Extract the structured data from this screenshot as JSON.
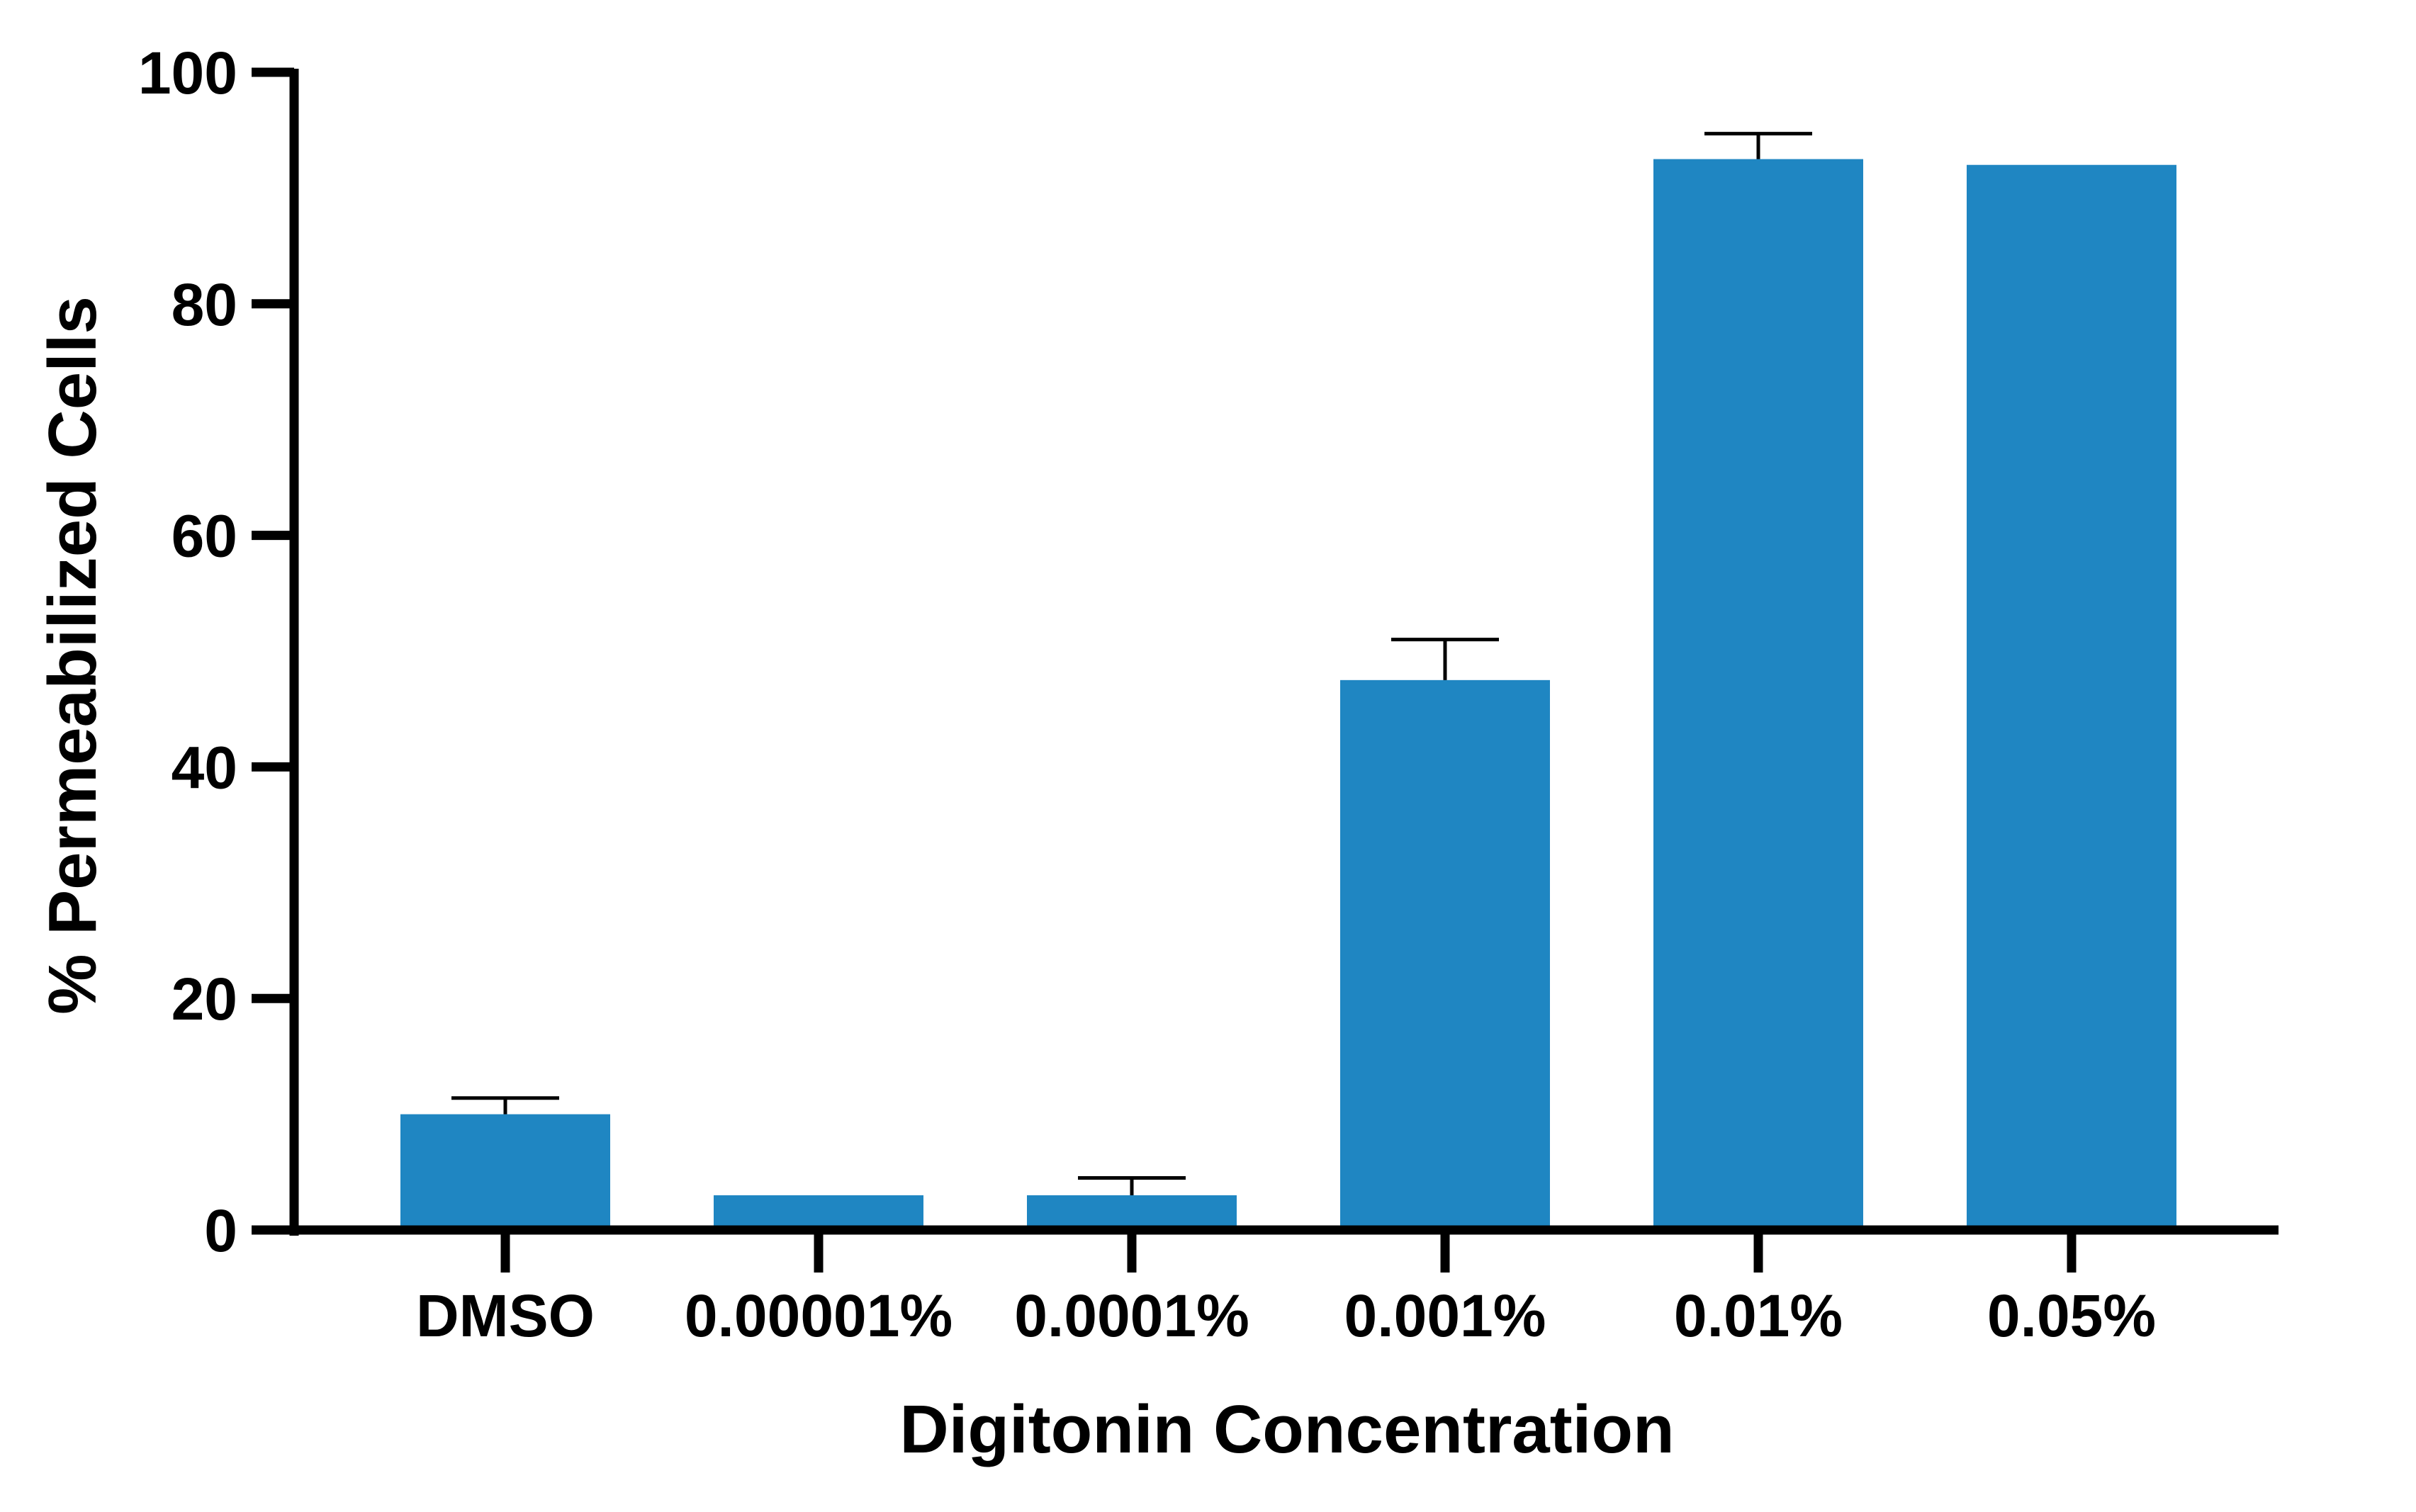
{
  "chart_data": {
    "type": "bar",
    "categories": [
      "DMSO",
      "0.00001%",
      "0.0001%",
      "0.001%",
      "0.01%",
      "0.05%"
    ],
    "series": [
      {
        "values": [
          10,
          3,
          3,
          47.5,
          92.5,
          92
        ],
        "error_upper": [
          1.4,
          0,
          1.5,
          3.5,
          2.2,
          0
        ]
      }
    ],
    "xlabel": "Digitonin Concentration",
    "ylabel": "% Permeabilized Cells",
    "ylim": [
      0,
      100
    ],
    "yticks": [
      0,
      20,
      40,
      60,
      80,
      100
    ],
    "grid": false,
    "legend": "none",
    "colors": {
      "bar": "#1f86c2",
      "axis": "#000000",
      "error_bar": "#000000"
    }
  }
}
